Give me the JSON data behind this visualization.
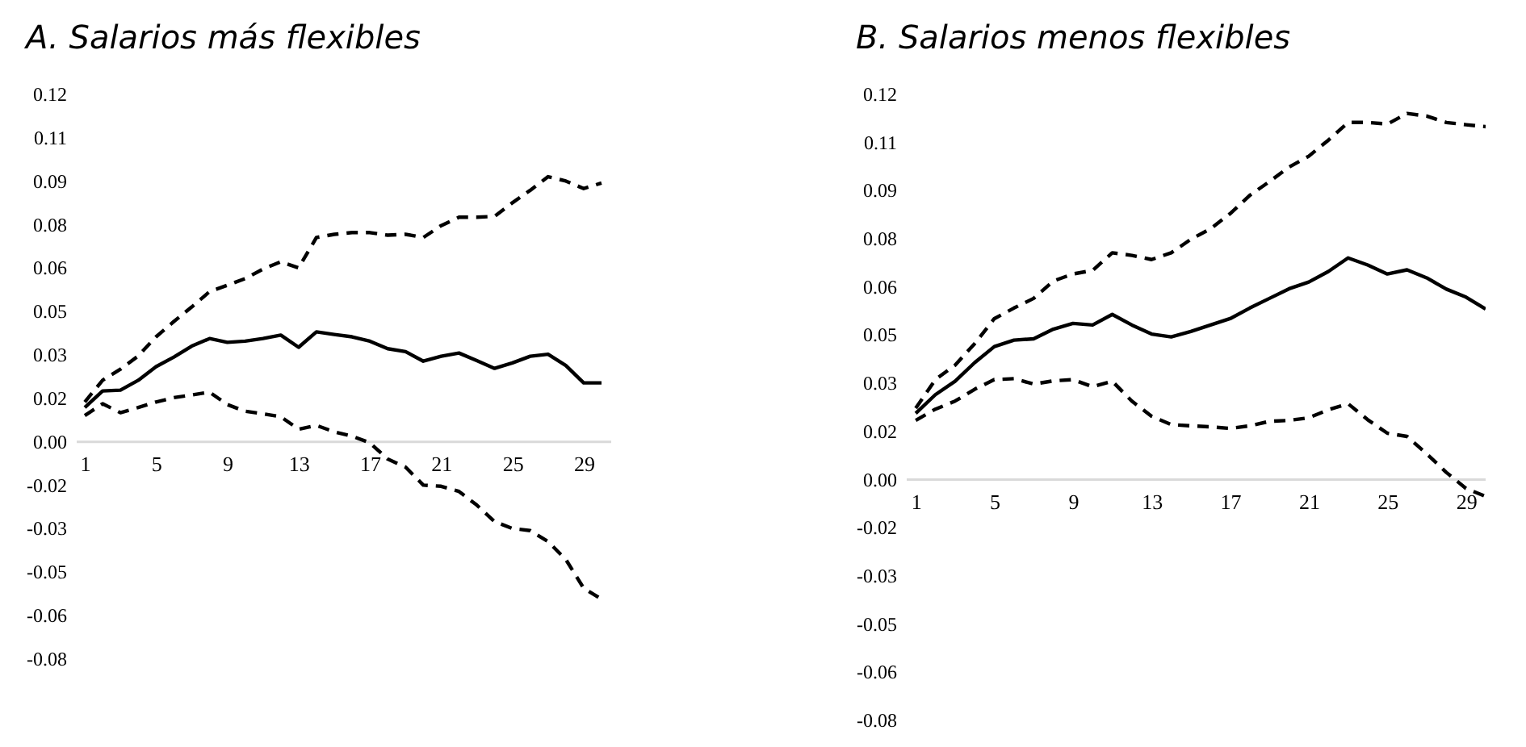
{
  "chart_data": [
    {
      "type": "line",
      "title": "A. Salarios más flexibles",
      "x": [
        1,
        2,
        3,
        4,
        5,
        6,
        7,
        8,
        9,
        10,
        11,
        12,
        13,
        14,
        15,
        16,
        17,
        18,
        19,
        20,
        21,
        22,
        23,
        24,
        25,
        26,
        27,
        28,
        29,
        30
      ],
      "xlim": [
        0.5,
        30.5
      ],
      "xticks": [
        1,
        5,
        9,
        13,
        17,
        21,
        25,
        29
      ],
      "ylim": [
        -0.075,
        0.12
      ],
      "yticks": [
        {
          "value": -0.075,
          "label": "-0.08"
        },
        -0.06,
        {
          "value": -0.045,
          "label": "-0.05"
        },
        -0.03,
        {
          "value": -0.015,
          "label": "-0.02"
        },
        {
          "value": 0,
          "label": "0.00"
        },
        {
          "value": 0.015,
          "label": "0.02"
        },
        0.03,
        {
          "value": 0.045,
          "label": "0.05"
        },
        0.06,
        {
          "value": 0.075,
          "label": "0.08"
        },
        0.09,
        {
          "value": 0.105,
          "label": "0.11"
        },
        0.12
      ],
      "series": [
        {
          "color": "#000000",
          "line_style": "dashed",
          "values": [
            0.0135,
            0.021,
            0.0248,
            0.0294,
            0.036,
            0.0413,
            0.0463,
            0.0516,
            0.0538,
            0.0561,
            0.0594,
            0.0619,
            0.0598,
            0.0703,
            0.0714,
            0.072,
            0.072,
            0.0711,
            0.0714,
            0.0703,
            0.0744,
            0.0773,
            0.0773,
            0.0776,
            0.0823,
            0.0866,
            0.0913,
            0.0898,
            0.0872,
            0.0891
          ]
        },
        {
          "color": "#000000",
          "line_style": "solid",
          "values": [
            0.0116,
            0.0173,
            0.0176,
            0.021,
            0.0257,
            0.029,
            0.0328,
            0.0354,
            0.0341,
            0.0345,
            0.0354,
            0.0366,
            0.0324,
            0.0377,
            0.0368,
            0.036,
            0.0345,
            0.0319,
            0.0309,
            0.0276,
            0.0293,
            0.0304,
            0.0278,
            0.0251,
            0.027,
            0.0293,
            0.03,
            0.0261,
            0.0201,
            0.0201
          ]
        },
        {
          "color": "#000000",
          "line_style": "dashed",
          "values": [
            0.0088,
            0.0129,
            0.0098,
            0.0116,
            0.0135,
            0.015,
            0.0159,
            0.0169,
            0.0126,
            0.0103,
            0.0094,
            0.0084,
            0.0041,
            0.0054,
            0.0032,
            0.0017,
            -0.0006,
            -0.0062,
            -0.009,
            -0.0152,
            -0.0156,
            -0.0174,
            -0.0221,
            -0.0278,
            -0.0302,
            -0.0309,
            -0.0347,
            -0.0409,
            -0.0508,
            -0.0546
          ]
        }
      ]
    },
    {
      "type": "line",
      "title": "B. Salarios menos flexibles",
      "x": [
        1,
        2,
        3,
        4,
        5,
        6,
        7,
        8,
        9,
        10,
        11,
        12,
        13,
        14,
        15,
        16,
        17,
        18,
        19,
        20,
        21,
        22,
        23,
        24,
        25,
        26,
        27,
        28,
        29,
        30
      ],
      "xlim": [
        0.5,
        30
      ],
      "xticks": [
        1,
        5,
        9,
        13,
        17,
        21,
        25,
        29
      ],
      "ylim": [
        -0.075,
        0.12
      ],
      "yticks": [
        {
          "value": -0.075,
          "label": "-0.08"
        },
        -0.06,
        {
          "value": -0.045,
          "label": "-0.05"
        },
        -0.03,
        {
          "value": -0.015,
          "label": "-0.02"
        },
        {
          "value": 0,
          "label": "0.00"
        },
        {
          "value": 0.015,
          "label": "0.02"
        },
        0.03,
        {
          "value": 0.045,
          "label": "0.05"
        },
        0.06,
        {
          "value": 0.075,
          "label": "0.08"
        },
        0.09,
        {
          "value": 0.105,
          "label": "0.11"
        },
        0.12
      ],
      "series": [
        {
          "color": "#000000",
          "line_style": "dashed",
          "values": [
            0.022,
            0.0309,
            0.0354,
            0.0421,
            0.0499,
            0.0532,
            0.0562,
            0.0616,
            0.0638,
            0.0649,
            0.0704,
            0.0696,
            0.0683,
            0.0704,
            0.0746,
            0.0779,
            0.0826,
            0.0883,
            0.0926,
            0.0971,
            0.1005,
            0.1055,
            0.111,
            0.111,
            0.1105,
            0.1138,
            0.113,
            0.111,
            0.1103,
            0.1097
          ]
        },
        {
          "color": "#000000",
          "line_style": "solid",
          "values": [
            0.0204,
            0.0262,
            0.0304,
            0.0362,
            0.0412,
            0.0432,
            0.0436,
            0.0466,
            0.0484,
            0.0479,
            0.0512,
            0.0479,
            0.0451,
            0.0442,
            0.0459,
            0.0479,
            0.0499,
            0.0532,
            0.0562,
            0.0592,
            0.0613,
            0.0646,
            0.0688,
            0.0666,
            0.0638,
            0.0651,
            0.0626,
            0.0591,
            0.0566,
            0.0529
          ]
        },
        {
          "color": "#000000",
          "line_style": "dashed",
          "values": [
            0.0182,
            0.0217,
            0.0242,
            0.0279,
            0.0309,
            0.0312,
            0.0295,
            0.0305,
            0.0309,
            0.0287,
            0.0304,
            0.0242,
            0.0195,
            0.0169,
            0.0165,
            0.0162,
            0.0157,
            0.0165,
            0.0179,
            0.0182,
            0.019,
            0.0215,
            0.0234,
            0.0184,
            0.0142,
            0.0132,
            0.0078,
            0.002,
            -0.003,
            -0.0055
          ]
        }
      ]
    }
  ]
}
